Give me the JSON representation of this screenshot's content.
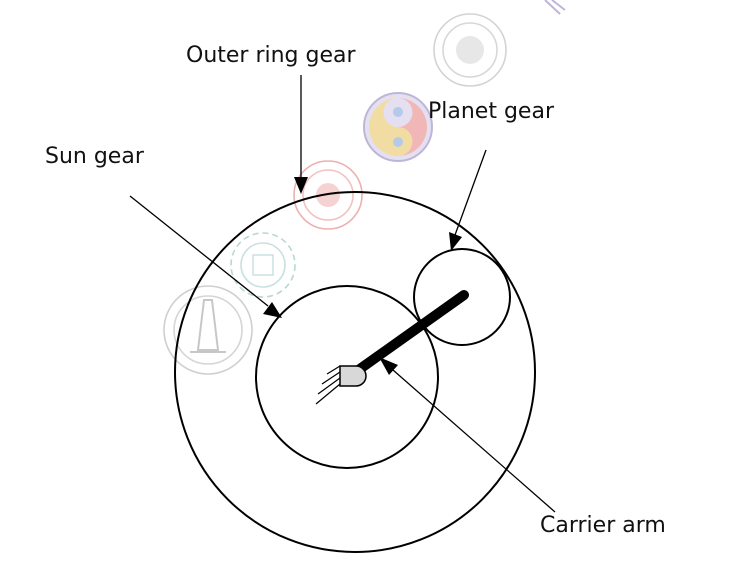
{
  "labels": {
    "outer_ring_gear": "Outer ring gear",
    "planet_gear": "Planet gear",
    "sun_gear": "Sun gear",
    "carrier_arm": "Carrier arm"
  },
  "colors": {
    "line": "#000000",
    "text": "#111111",
    "background": "#ffffff",
    "watermark_red": "#e07070",
    "watermark_teal": "#7fb7b3",
    "watermark_purple": "#8a7ab8",
    "watermark_gold": "#e7c25a",
    "watermark_gray": "#a0a0a0"
  },
  "watermark_icons": [
    "emblem-watermark-gray",
    "logo-watermark-yin-yang",
    "emblem-watermark-red",
    "gear-logo-watermark-teal",
    "tower-logo-watermark"
  ]
}
